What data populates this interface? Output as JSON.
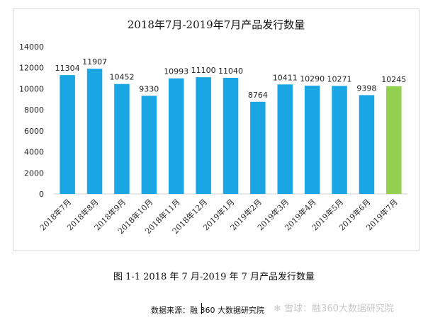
{
  "chart_data": {
    "type": "bar",
    "title": "2018年7月-2019年7月产品发行数量",
    "categories": [
      "2018年7月",
      "2018年8月",
      "2018年9月",
      "2018年10月",
      "2018年11月",
      "2018年12月",
      "2019年1月",
      "2019年2月",
      "2019年3月",
      "2019年4月",
      "2019年5月",
      "2019年6月",
      "2019年7月"
    ],
    "values": [
      11304,
      11907,
      10452,
      9330,
      10993,
      11100,
      11040,
      8764,
      10411,
      10290,
      10271,
      9398,
      10245
    ],
    "yticks": [
      0,
      2000,
      4000,
      6000,
      8000,
      10000,
      12000,
      14000
    ],
    "ylim": [
      0,
      14000
    ],
    "grid": false,
    "colors": {
      "default": "#1aa6e4",
      "highlight": "#92d050"
    },
    "highlight_index": 12
  },
  "caption": "图 1-1 2018 年 7 月-2019 年 7 月产品发行数量",
  "source": "数据来源：融 360 大数据研究院",
  "watermark_text": "雪球：融360大数据研究院",
  "watermark_icon": "snowball-icon"
}
